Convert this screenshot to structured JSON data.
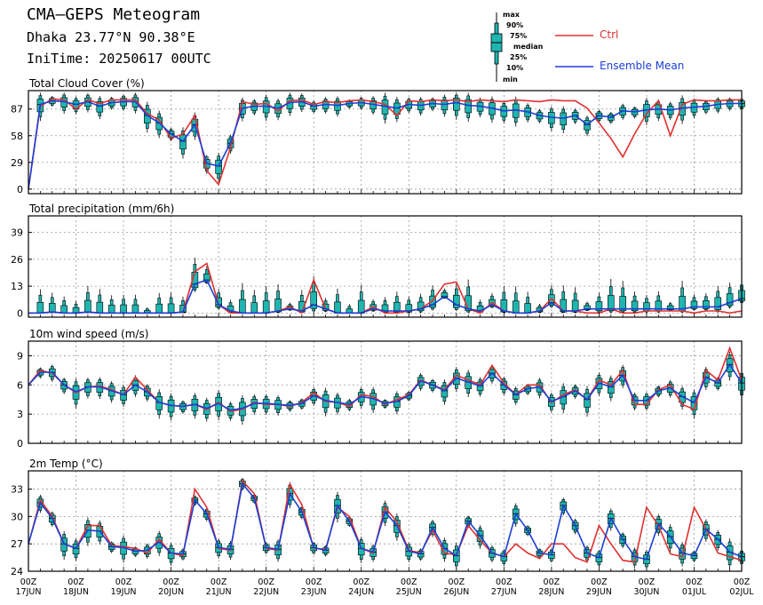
{
  "header": {
    "title": "CMA—GEPS Meteogram",
    "location": "Dhaka 23.77°N 90.38°E",
    "init_time": "IniTime: 20250617 00UTC"
  },
  "legend": {
    "box_labels": [
      "max",
      "90%",
      "75%",
      "median",
      "25%",
      "10%",
      "min"
    ],
    "ctrl_label": "Ctrl",
    "mean_label": "Ensemble Mean",
    "ctrl_color": "#e03030",
    "mean_color": "#1a3fd6",
    "box_color": "#1fb5b0"
  },
  "chart_data": [
    {
      "type": "line",
      "title": "Total Cloud Cover (%)",
      "ylim": [
        -5,
        107
      ],
      "yticks": [
        0,
        29,
        58,
        87
      ],
      "x_hours_step": 6,
      "x_range_hours": [
        0,
        360
      ],
      "series": [
        {
          "name": "Ctrl",
          "x": [
            0,
            6,
            12,
            18,
            24,
            30,
            36,
            42,
            48,
            54,
            60,
            66,
            72,
            78,
            84,
            90,
            96,
            102,
            108,
            114,
            120,
            126,
            132,
            138,
            144,
            150,
            156,
            162,
            168,
            174,
            180,
            186,
            192,
            198,
            204,
            210,
            216,
            222,
            228,
            234,
            240,
            246,
            252,
            258,
            264,
            270,
            276,
            282,
            288,
            294,
            300,
            306,
            312,
            318,
            324,
            330,
            336,
            342,
            348,
            354,
            360
          ],
          "values": [
            0,
            90,
            98,
            97,
            87,
            97,
            93,
            97,
            97,
            97,
            82,
            75,
            55,
            60,
            80,
            20,
            5,
            45,
            95,
            92,
            93,
            85,
            96,
            97,
            92,
            95,
            94,
            96,
            97,
            95,
            92,
            80,
            96,
            95,
            97,
            96,
            97,
            95,
            97,
            96,
            95,
            97,
            96,
            95,
            97,
            96,
            96,
            88,
            72,
            55,
            35,
            60,
            82,
            96,
            58,
            92,
            97,
            96,
            96,
            97,
            97
          ]
        },
        {
          "name": "Ensemble Mean",
          "x": [
            0,
            6,
            12,
            18,
            24,
            30,
            36,
            42,
            48,
            54,
            60,
            66,
            72,
            78,
            84,
            90,
            96,
            102,
            108,
            114,
            120,
            126,
            132,
            138,
            144,
            150,
            156,
            162,
            168,
            174,
            180,
            186,
            192,
            198,
            204,
            210,
            216,
            222,
            228,
            234,
            240,
            246,
            252,
            258,
            264,
            270,
            276,
            282,
            288,
            294,
            300,
            306,
            312,
            318,
            324,
            330,
            336,
            342,
            348,
            354,
            360
          ],
          "values": [
            0,
            92,
            96,
            95,
            92,
            95,
            90,
            94,
            95,
            95,
            80,
            72,
            60,
            52,
            70,
            28,
            25,
            50,
            88,
            90,
            90,
            88,
            94,
            95,
            90,
            92,
            91,
            93,
            94,
            92,
            90,
            88,
            92,
            91,
            93,
            92,
            94,
            91,
            90,
            88,
            85,
            86,
            84,
            80,
            78,
            77,
            80,
            70,
            80,
            78,
            85,
            84,
            86,
            87,
            86,
            88,
            89,
            90,
            92,
            93,
            93
          ]
        }
      ]
    },
    {
      "type": "line",
      "title": "Total precipitation (mm/6h)",
      "ylim": [
        -2,
        47
      ],
      "yticks": [
        0,
        13,
        26,
        39
      ],
      "series": [
        {
          "name": "Ctrl",
          "values": [
            0,
            0,
            0.5,
            0,
            0,
            0.5,
            0,
            0,
            0,
            0,
            0,
            0,
            0,
            0.5,
            20,
            24,
            4,
            0,
            0,
            0,
            0,
            1,
            3,
            0,
            16,
            2,
            0,
            0,
            0,
            3,
            0,
            0,
            1,
            2,
            6,
            14,
            15,
            2,
            0,
            5,
            1,
            0,
            0,
            1,
            7,
            1,
            1,
            0,
            0,
            2,
            0,
            0,
            1,
            1,
            1,
            1,
            0,
            1,
            1,
            0,
            1
          ]
        },
        {
          "name": "Ensemble Mean",
          "values": [
            0,
            0,
            0.5,
            0,
            0,
            0.5,
            0,
            0,
            0,
            0,
            0,
            0,
            0,
            0.5,
            14,
            16,
            4,
            1,
            0,
            0,
            0,
            1,
            2,
            1,
            4,
            2,
            0,
            0,
            0,
            2,
            1,
            1,
            1,
            2,
            4,
            8,
            4,
            2,
            1,
            4,
            1,
            0,
            0,
            1,
            5,
            1,
            1,
            2,
            2,
            2,
            2,
            2,
            2,
            2,
            2,
            2,
            3,
            3,
            3,
            5,
            7
          ]
        }
      ]
    },
    {
      "type": "line",
      "title": "10m wind speed (m/s)",
      "ylim": [
        0,
        10.5
      ],
      "yticks": [
        0,
        3,
        6,
        9
      ],
      "series": [
        {
          "name": "Ctrl",
          "values": [
            6,
            7.5,
            7.2,
            6,
            5.2,
            5.8,
            5.9,
            5.5,
            5,
            6.8,
            5.5,
            4.2,
            3.9,
            3.8,
            4,
            3.5,
            4.2,
            3.3,
            3.5,
            4.2,
            4,
            4,
            3.8,
            4.2,
            5.2,
            4.3,
            4.2,
            3.8,
            5,
            4.8,
            4,
            4.5,
            5,
            6.5,
            6,
            5.5,
            7,
            6.5,
            6,
            8,
            6.2,
            5,
            6,
            6,
            4.2,
            5,
            5.5,
            4.5,
            6.5,
            6,
            7.5,
            4,
            4,
            5.5,
            6,
            4,
            3.5,
            7.5,
            6.5,
            9.8,
            6.5
          ]
        },
        {
          "name": "Ensemble Mean",
          "values": [
            6,
            7.3,
            7.3,
            6,
            5.3,
            5.8,
            5.8,
            5.4,
            5,
            6,
            5.3,
            4.2,
            3.9,
            3.8,
            4,
            3.6,
            4.1,
            3.4,
            3.6,
            4.1,
            4.1,
            4,
            3.9,
            4.1,
            4.9,
            4.4,
            4.2,
            4,
            4.8,
            4.6,
            4.1,
            4.3,
            4.9,
            6.4,
            6,
            5.4,
            6.7,
            6.3,
            5.9,
            7.2,
            6,
            5,
            5.6,
            5.8,
            4.3,
            4.8,
            5.4,
            4.5,
            6.2,
            5.8,
            7,
            4.4,
            4.4,
            5.4,
            5.7,
            4.8,
            4.2,
            6.8,
            6.2,
            8.1,
            6.2
          ]
        }
      ]
    },
    {
      "type": "line",
      "title": "2m Temp (°C)",
      "ylim": [
        24,
        35
      ],
      "yticks": [
        24,
        27,
        30,
        33
      ],
      "series": [
        {
          "name": "Ctrl",
          "values": [
            27,
            31.8,
            30,
            27,
            26.5,
            29,
            29,
            26.8,
            26.7,
            26.5,
            26,
            27.5,
            26,
            25.7,
            33,
            31,
            26.5,
            26.3,
            33.9,
            32.5,
            26.5,
            26.3,
            33.5,
            31.3,
            26.5,
            26.4,
            31,
            30,
            26.5,
            26,
            31,
            29.4,
            26.3,
            26,
            28.5,
            26,
            25.8,
            29,
            27.4,
            26,
            25.6,
            27,
            26,
            25.4,
            27,
            27,
            25.5,
            25,
            29,
            27,
            25.2,
            25,
            31,
            29,
            25.9,
            25.6,
            31,
            28.6,
            26,
            25.6,
            25.2
          ]
        },
        {
          "name": "Ensemble Mean",
          "values": [
            27,
            31.5,
            29.8,
            27,
            26.5,
            28.5,
            28.4,
            26.7,
            26.6,
            26.2,
            26.3,
            27.2,
            26,
            25.9,
            31.8,
            30.3,
            26.6,
            26.4,
            33.6,
            32,
            26.6,
            26.4,
            32.5,
            30.5,
            26.6,
            26.3,
            31.2,
            29.5,
            26.5,
            26.1,
            30.5,
            29,
            26.2,
            25.9,
            28.8,
            26.5,
            25.7,
            29.5,
            27.9,
            26,
            25.6,
            30.3,
            28.5,
            26,
            25.8,
            31.2,
            29,
            26,
            25.5,
            29.8,
            27.5,
            25.6,
            25.3,
            29.2,
            27.8,
            26,
            25.7,
            28.6,
            27.5,
            26.1,
            25.6
          ]
        }
      ]
    }
  ],
  "x_axis": {
    "tick_hour": "00Z",
    "date_labels": [
      "17JUN",
      "18JUN",
      "19JUN",
      "20JUN",
      "21JUN",
      "22JUN",
      "23JUN",
      "24JUN",
      "25JUN",
      "26JUN",
      "27JUN",
      "28JUN",
      "29JUN",
      "30JUN",
      "01JUL",
      "02JUL"
    ]
  }
}
